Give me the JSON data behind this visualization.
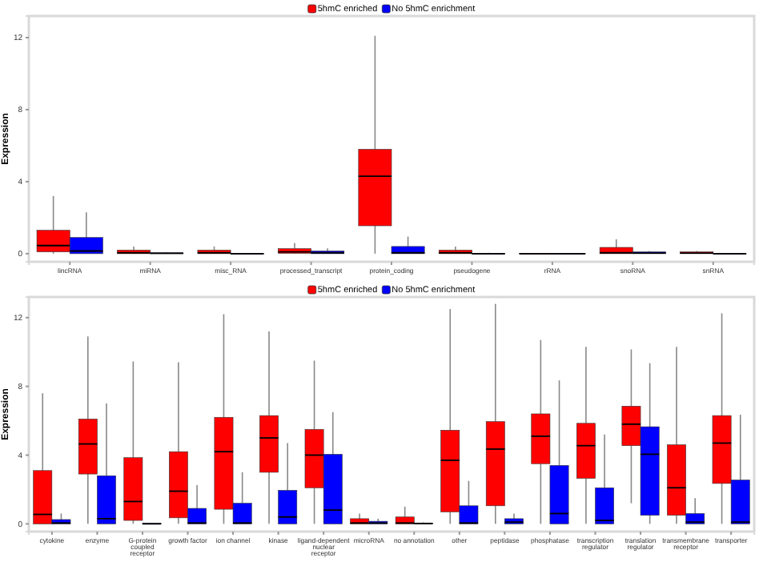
{
  "chart_data": [
    {
      "type": "box",
      "ylabel": "Expression",
      "ylim": [
        -0.45,
        13.2
      ],
      "yticks": [
        0,
        4,
        8,
        12
      ],
      "grid": false,
      "legend": "top",
      "categories": [
        "lincRNA",
        "miRNA",
        "misc_RNA",
        "processed_transcript",
        "protein_coding",
        "pseudogene",
        "rRNA",
        "snoRNA",
        "snRNA"
      ],
      "series": [
        {
          "name": "5hmC enriched",
          "color": "#ff0000",
          "boxes": [
            {
              "low": 0,
              "q1": 0.1,
              "median": 0.45,
              "q3": 1.3,
              "high": 3.2
            },
            {
              "low": 0,
              "q1": 0,
              "median": 0.05,
              "q3": 0.2,
              "high": 0.4
            },
            {
              "low": 0,
              "q1": 0,
              "median": 0.05,
              "q3": 0.2,
              "high": 0.4
            },
            {
              "low": 0,
              "q1": 0.02,
              "median": 0.1,
              "q3": 0.28,
              "high": 0.6
            },
            {
              "low": 0,
              "q1": 1.55,
              "median": 4.3,
              "q3": 5.8,
              "high": 12.1
            },
            {
              "low": 0,
              "q1": 0,
              "median": 0.05,
              "q3": 0.2,
              "high": 0.4
            },
            {
              "low": 0,
              "q1": 0,
              "median": 0,
              "q3": 0.02,
              "high": 0.04
            },
            {
              "low": 0,
              "q1": 0,
              "median": 0.05,
              "q3": 0.35,
              "high": 0.8
            },
            {
              "low": 0,
              "q1": 0,
              "median": 0.03,
              "q3": 0.1,
              "high": 0.15
            }
          ]
        },
        {
          "name": "No 5hmC enrichment",
          "color": "#0000ff",
          "boxes": [
            {
              "low": 0,
              "q1": 0,
              "median": 0.15,
              "q3": 0.9,
              "high": 2.3
            },
            {
              "low": 0,
              "q1": 0,
              "median": 0.02,
              "q3": 0.05,
              "high": 0.08
            },
            {
              "low": 0,
              "q1": 0,
              "median": 0,
              "q3": 0.02,
              "high": 0.04
            },
            {
              "low": 0,
              "q1": 0,
              "median": 0.05,
              "q3": 0.15,
              "high": 0.3
            },
            {
              "low": 0,
              "q1": 0,
              "median": 0.05,
              "q3": 0.4,
              "high": 0.95
            },
            {
              "low": 0,
              "q1": 0,
              "median": 0,
              "q3": 0.02,
              "high": 0.05
            },
            {
              "low": 0,
              "q1": 0,
              "median": 0,
              "q3": 0.02,
              "high": 0.04
            },
            {
              "low": 0,
              "q1": 0,
              "median": 0.03,
              "q3": 0.1,
              "high": 0.15
            },
            {
              "low": 0,
              "q1": 0,
              "median": 0,
              "q3": 0.02,
              "high": 0.04
            }
          ]
        }
      ]
    },
    {
      "type": "box",
      "ylabel": "Expression",
      "ylim": [
        -0.45,
        13.2
      ],
      "yticks": [
        0,
        4,
        8,
        12
      ],
      "grid": false,
      "legend": "top",
      "categories": [
        "cytokine",
        "enzyme",
        "G-protein coupled receptor",
        "growth factor",
        "ion channel",
        "kinase",
        "ligand-dependent nuclear receptor",
        "microRNA",
        "no annotation",
        "other",
        "peptidase",
        "phosphatase",
        "transcription regulator",
        "translation regulator",
        "transmembrane receptor",
        "transporter"
      ],
      "series": [
        {
          "name": "5hmC enriched",
          "color": "#ff0000",
          "boxes": [
            {
              "low": 0,
              "q1": 0,
              "median": 0.55,
              "q3": 3.1,
              "high": 7.6
            },
            {
              "low": 0,
              "q1": 2.9,
              "median": 4.65,
              "q3": 6.1,
              "high": 10.9
            },
            {
              "low": 0,
              "q1": 0.2,
              "median": 1.3,
              "q3": 3.85,
              "high": 9.45
            },
            {
              "low": 0,
              "q1": 0.35,
              "median": 1.9,
              "q3": 4.2,
              "high": 9.4
            },
            {
              "low": 0,
              "q1": 0.85,
              "median": 4.2,
              "q3": 6.2,
              "high": 12.2
            },
            {
              "low": 0,
              "q1": 3,
              "median": 5,
              "q3": 6.3,
              "high": 11.2
            },
            {
              "low": 0,
              "q1": 2.1,
              "median": 4,
              "q3": 5.5,
              "high": 9.5
            },
            {
              "low": 0,
              "q1": 0,
              "median": 0.05,
              "q3": 0.3,
              "high": 0.6
            },
            {
              "low": 0,
              "q1": 0,
              "median": 0.05,
              "q3": 0.4,
              "high": 1
            },
            {
              "low": 0,
              "q1": 0.7,
              "median": 3.7,
              "q3": 5.45,
              "high": 12.5
            },
            {
              "low": 0,
              "q1": 1.05,
              "median": 4.35,
              "q3": 5.95,
              "high": 12.8
            },
            {
              "low": 0,
              "q1": 3.5,
              "median": 5.1,
              "q3": 6.4,
              "high": 10.7
            },
            {
              "low": 0,
              "q1": 2.65,
              "median": 4.55,
              "q3": 5.85,
              "high": 10.3
            },
            {
              "low": 1.2,
              "q1": 4.55,
              "median": 5.8,
              "q3": 6.85,
              "high": 10.15
            },
            {
              "low": 0,
              "q1": 0.5,
              "median": 2.1,
              "q3": 4.6,
              "high": 10.3
            },
            {
              "low": 0,
              "q1": 2.35,
              "median": 4.7,
              "q3": 6.3,
              "high": 12.25
            }
          ]
        },
        {
          "name": "No 5hmC enrichment",
          "color": "#0000ff",
          "boxes": [
            {
              "low": 0,
              "q1": 0,
              "median": 0.05,
              "q3": 0.25,
              "high": 0.6
            },
            {
              "low": 0,
              "q1": 0,
              "median": 0.3,
              "q3": 2.8,
              "high": 7
            },
            {
              "low": 0,
              "q1": 0,
              "median": 0,
              "q3": 0.03,
              "high": 0.05
            },
            {
              "low": 0,
              "q1": 0,
              "median": 0.05,
              "q3": 0.9,
              "high": 2.25
            },
            {
              "low": 0,
              "q1": 0,
              "median": 0.05,
              "q3": 1.2,
              "high": 3
            },
            {
              "low": 0,
              "q1": 0,
              "median": 0.4,
              "q3": 1.95,
              "high": 4.7
            },
            {
              "low": 0,
              "q1": 0,
              "median": 0.8,
              "q3": 4.05,
              "high": 6.5
            },
            {
              "low": 0,
              "q1": 0,
              "median": 0.05,
              "q3": 0.15,
              "high": 0.3
            },
            {
              "low": 0,
              "q1": 0,
              "median": 0.02,
              "q3": 0.05,
              "high": 0.08
            },
            {
              "low": 0,
              "q1": 0,
              "median": 0.05,
              "q3": 1.05,
              "high": 2.5
            },
            {
              "low": 0,
              "q1": 0,
              "median": 0.1,
              "q3": 0.3,
              "high": 0.6
            },
            {
              "low": 0,
              "q1": 0,
              "median": 0.6,
              "q3": 3.4,
              "high": 8.35
            },
            {
              "low": 0,
              "q1": 0,
              "median": 0.2,
              "q3": 2.1,
              "high": 5.2
            },
            {
              "low": 0,
              "q1": 0.5,
              "median": 4.05,
              "q3": 5.65,
              "high": 9.35
            },
            {
              "low": 0,
              "q1": 0,
              "median": 0.1,
              "q3": 0.6,
              "high": 1.5
            },
            {
              "low": 0,
              "q1": 0,
              "median": 0.1,
              "q3": 2.55,
              "high": 6.35
            }
          ]
        }
      ]
    }
  ]
}
